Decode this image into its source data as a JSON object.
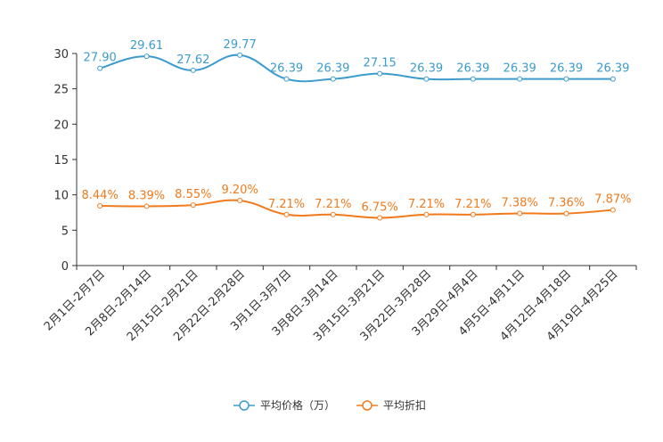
{
  "chart_data": {
    "type": "line",
    "title": "",
    "xlabel": "",
    "ylabel": "",
    "ylim": [
      0,
      30
    ],
    "yticks": [
      0,
      5,
      10,
      15,
      20,
      25,
      30
    ],
    "grid": false,
    "legend_position": "bottom-center",
    "categories": [
      "2月1日-2月7日",
      "2月8日-2月14日",
      "2月15日-2月21日",
      "2月22日-2月28日",
      "3月1日-3月7日",
      "3月8日-3月14日",
      "3月15日-3月21日",
      "3月22日-3月28日",
      "3月29日-4月4日",
      "4月5日-4月11日",
      "4月12日-4月18日",
      "4月19日-4月25日"
    ],
    "series": [
      {
        "name": "平均价格（万）",
        "color": "#3c9ccd",
        "values": [
          27.9,
          29.61,
          27.62,
          29.77,
          26.39,
          26.39,
          27.15,
          26.39,
          26.39,
          26.39,
          26.39,
          26.39
        ],
        "labels": [
          "27.90",
          "29.61",
          "27.62",
          "29.77",
          "26.39",
          "26.39",
          "27.15",
          "26.39",
          "26.39",
          "26.39",
          "26.39",
          "26.39"
        ]
      },
      {
        "name": "平均折扣",
        "color": "#f07a1c",
        "values": [
          8.44,
          8.39,
          8.55,
          9.2,
          7.21,
          7.21,
          6.75,
          7.21,
          7.21,
          7.38,
          7.36,
          7.87
        ],
        "labels": [
          "8.44%",
          "8.39%",
          "8.55%",
          "9.20%",
          "7.21%",
          "7.21%",
          "6.75%",
          "7.21%",
          "7.21%",
          "7.38%",
          "7.36%",
          "7.87%"
        ]
      }
    ]
  }
}
